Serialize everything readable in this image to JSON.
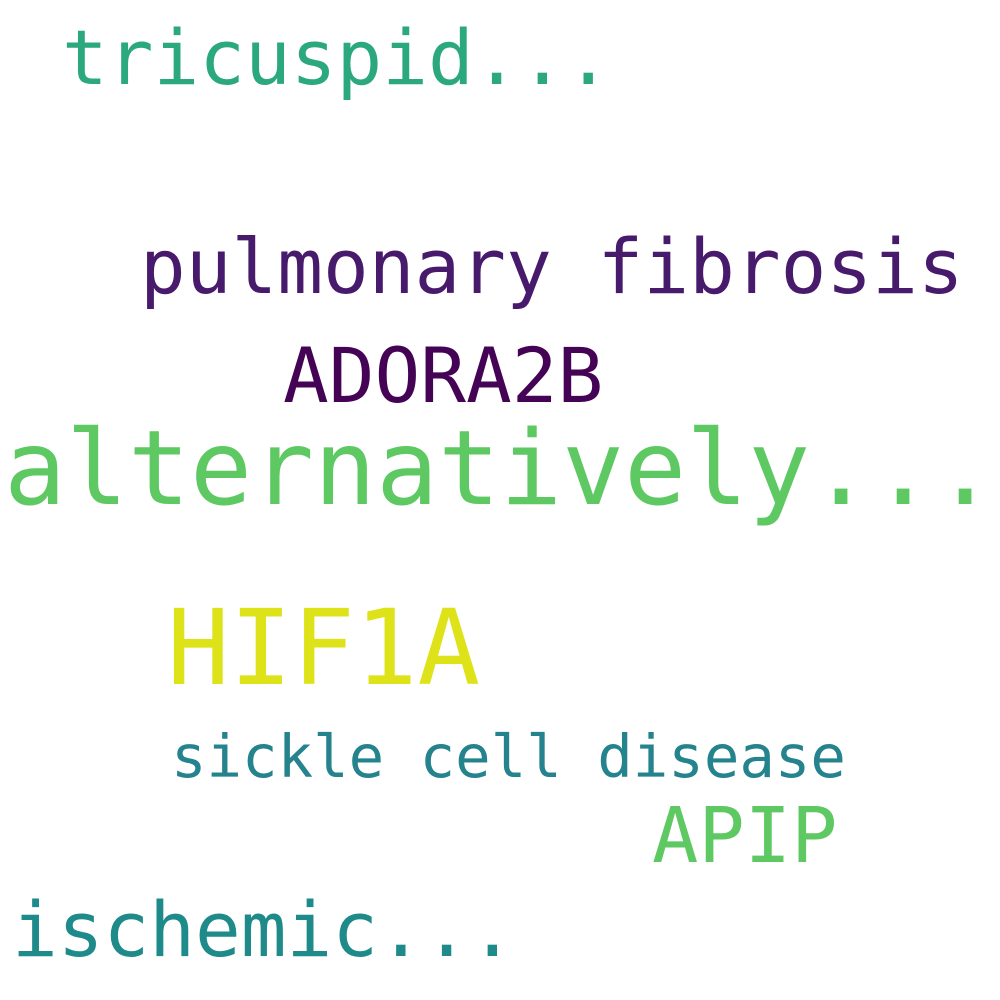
{
  "words": [
    {
      "id": "tricuspid",
      "text": "tricuspid...",
      "color": "#2ba87d"
    },
    {
      "id": "pulmonary",
      "text": "pulmonary fibrosis",
      "color": "#481a6c"
    },
    {
      "id": "adora2b",
      "text": "ADORA2B",
      "color": "#440354"
    },
    {
      "id": "alternatively",
      "text": "alternatively...",
      "color": "#5ec962"
    },
    {
      "id": "hif1a",
      "text": "HIF1A",
      "color": "#dde318"
    },
    {
      "id": "sickle",
      "text": "sickle cell disease",
      "color": "#25838e"
    },
    {
      "id": "apip",
      "text": "APIP",
      "color": "#5ec962"
    },
    {
      "id": "ischemic",
      "text": "ischemic...",
      "color": "#1f8a8a"
    }
  ]
}
